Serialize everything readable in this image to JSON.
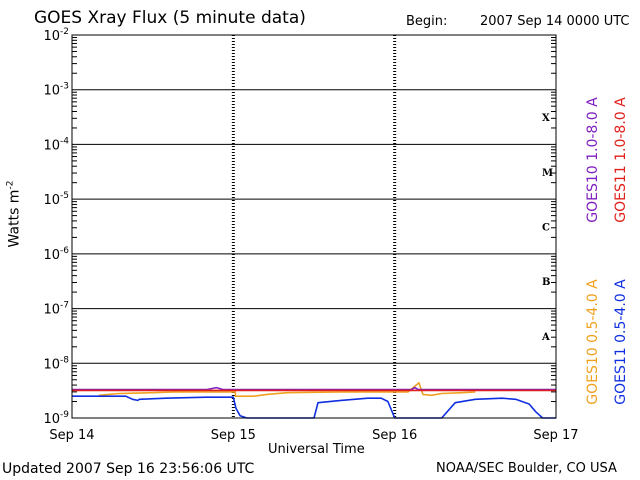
{
  "header": {
    "title": "GOES Xray Flux (5 minute data)",
    "begin_label": "Begin:",
    "begin_value": "2007 Sep 14 0000 UTC"
  },
  "footer": {
    "updated": "Updated 2007 Sep 16 23:56:06 UTC",
    "credit": "NOAA/SEC Boulder, CO USA"
  },
  "chart_data": {
    "type": "line",
    "title": "GOES Xray Flux (5 minute data)",
    "xlabel": "Universal Time",
    "ylabel": "Watts m-2",
    "ylabel_base": "Watts m",
    "ylabel_sup": "-2",
    "yscale": "log",
    "ylim": [
      1e-09,
      0.01
    ],
    "xlim": [
      0,
      72
    ],
    "x_units": "hours since 2007 Sep 14 0000 UTC",
    "grid": "horizontal lines at each decade; dashed vertical markers at day boundaries",
    "x_ticks": [
      {
        "x": 0,
        "label": "Sep 14"
      },
      {
        "x": 24,
        "label": "Sep 15"
      },
      {
        "x": 48,
        "label": "Sep 16"
      },
      {
        "x": 72,
        "label": "Sep 17"
      }
    ],
    "y_ticks": [
      {
        "exp": -2,
        "base": "10",
        "sup": "-2"
      },
      {
        "exp": -3,
        "base": "10",
        "sup": "-3"
      },
      {
        "exp": -4,
        "base": "10",
        "sup": "-4"
      },
      {
        "exp": -5,
        "base": "10",
        "sup": "-5"
      },
      {
        "exp": -6,
        "base": "10",
        "sup": "-6"
      },
      {
        "exp": -7,
        "base": "10",
        "sup": "-7"
      },
      {
        "exp": -8,
        "base": "10",
        "sup": "-8"
      },
      {
        "exp": -9,
        "base": "10",
        "sup": "-9"
      }
    ],
    "flare_classes": [
      {
        "label": "X",
        "exp": -3.5
      },
      {
        "label": "M",
        "exp": -4.5
      },
      {
        "label": "C",
        "exp": -5.5
      },
      {
        "label": "B",
        "exp": -6.5
      },
      {
        "label": "A",
        "exp": -7.5
      }
    ],
    "legend_placement": "right side, vertical",
    "legend": [
      {
        "name": "GOES10 1.0-8.0 A",
        "color": "#7f1fbf",
        "group": "top-left"
      },
      {
        "name": "GOES11 1.0-8.0 A",
        "color": "#e0201c",
        "group": "top-right"
      },
      {
        "name": "GOES10 0.5-4.0 A",
        "color": "#f0a020",
        "group": "bottom-left"
      },
      {
        "name": "GOES11 0.5-4.0 A",
        "color": "#1030e0",
        "group": "bottom-right"
      }
    ],
    "series": [
      {
        "name": "GOES11 1.0-8.0 A",
        "color": "#e0201c",
        "points": [
          [
            0,
            3.2e-09
          ],
          [
            10,
            3.2e-09
          ],
          [
            20,
            3.2e-09
          ],
          [
            30,
            3.2e-09
          ],
          [
            40,
            3.2e-09
          ],
          [
            50,
            3.2e-09
          ],
          [
            60,
            3.2e-09
          ],
          [
            72,
            3.2e-09
          ]
        ]
      },
      {
        "name": "GOES10 1.0-8.0 A",
        "color": "#7f1fbf",
        "points": [
          [
            0,
            3.3e-09
          ],
          [
            20,
            3.3e-09
          ],
          [
            21.5,
            3.6e-09
          ],
          [
            22.5,
            3.3e-09
          ],
          [
            40,
            3.3e-09
          ],
          [
            50.5,
            3.3e-09
          ],
          [
            51,
            3.6e-09
          ],
          [
            51.5,
            3.3e-09
          ],
          [
            72,
            3.3e-09
          ]
        ]
      },
      {
        "name": "GOES10 0.5-4.0 A",
        "color": "#f0a020",
        "points": [
          [
            4,
            2.6e-09
          ],
          [
            7,
            2.8e-09
          ],
          [
            12,
            2.9e-09
          ],
          [
            15,
            3e-09
          ],
          [
            20,
            3e-09
          ],
          [
            24.3,
            3e-09
          ],
          [
            24.3,
            2.5e-09
          ],
          [
            27,
            2.5e-09
          ],
          [
            29,
            2.7e-09
          ],
          [
            32,
            2.9e-09
          ],
          [
            40,
            3e-09
          ],
          [
            50,
            3e-09
          ],
          [
            51.6,
            4.4e-09
          ],
          [
            52.2,
            2.7e-09
          ],
          [
            53.5,
            2.6e-09
          ],
          [
            55,
            2.8e-09
          ],
          [
            58,
            2.9e-09
          ],
          [
            60,
            3e-09
          ]
        ]
      },
      {
        "name": "GOES11 0.5-4.0 A",
        "color": "#1030e0",
        "points": [
          [
            0,
            2.5e-09
          ],
          [
            8,
            2.5e-09
          ],
          [
            9,
            2.2e-09
          ],
          [
            9.8,
            2.1e-09
          ],
          [
            10,
            2.2e-09
          ],
          [
            14,
            2.3e-09
          ],
          [
            20,
            2.4e-09
          ],
          [
            24,
            2.4e-09
          ],
          [
            24.4,
            1.5e-09
          ],
          [
            25,
            1.1e-09
          ],
          [
            26,
            9e-10
          ],
          [
            28,
            9e-10
          ],
          [
            33,
            9e-10
          ],
          [
            36,
            9e-10
          ],
          [
            36.6,
            1.9e-09
          ],
          [
            40,
            2.1e-09
          ],
          [
            44,
            2.3e-09
          ],
          [
            46,
            2.3e-09
          ],
          [
            47,
            2e-09
          ],
          [
            48,
            1e-09
          ],
          [
            50,
            8e-10
          ],
          [
            52,
            8e-10
          ],
          [
            55,
            9e-10
          ],
          [
            57,
            1.9e-09
          ],
          [
            60,
            2.2e-09
          ],
          [
            64,
            2.3e-09
          ],
          [
            66,
            2.2e-09
          ],
          [
            68,
            1.8e-09
          ],
          [
            69,
            1.3e-09
          ],
          [
            70,
            9e-10
          ],
          [
            72,
            8.5e-10
          ]
        ]
      }
    ]
  }
}
